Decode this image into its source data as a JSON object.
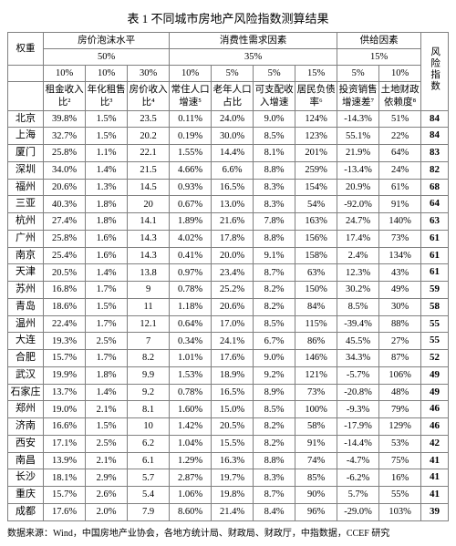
{
  "title": "表 1 不同城市房地产风险指数测算结果",
  "header": {
    "weight_label": "权重",
    "group1": "房价泡沫水平",
    "group1_pct": "50%",
    "group2": "消费性需求因素",
    "group2_pct": "35%",
    "group3": "供给因素",
    "group3_pct": "15%",
    "risk_label": "风险指数",
    "cols": [
      {
        "pct": "10%",
        "name": "租金收入比²"
      },
      {
        "pct": "10%",
        "name": "年化租售比³"
      },
      {
        "pct": "30%",
        "name": "房价收入比⁴"
      },
      {
        "pct": "10%",
        "name": "常住人口增速⁵"
      },
      {
        "pct": "5%",
        "name": "老年人口占比"
      },
      {
        "pct": "5%",
        "name": "可支配收入增速"
      },
      {
        "pct": "15%",
        "name": "居民负债率⁶"
      },
      {
        "pct": "5%",
        "name": "投资销售增速差⁷"
      },
      {
        "pct": "10%",
        "name": "土地财政依赖度⁸"
      }
    ]
  },
  "rows": [
    {
      "city": "北京",
      "v": [
        "39.8%",
        "1.5%",
        "23.5",
        "0.11%",
        "24.0%",
        "9.0%",
        "124%",
        "-14.3%",
        "51%"
      ],
      "risk": "84"
    },
    {
      "city": "上海",
      "v": [
        "32.7%",
        "1.5%",
        "20.2",
        "0.19%",
        "30.0%",
        "8.5%",
        "123%",
        "55.1%",
        "22%"
      ],
      "risk": "84"
    },
    {
      "city": "厦门",
      "v": [
        "25.8%",
        "1.1%",
        "22.1",
        "1.55%",
        "14.4%",
        "8.1%",
        "201%",
        "21.9%",
        "64%"
      ],
      "risk": "83"
    },
    {
      "city": "深圳",
      "v": [
        "34.0%",
        "1.4%",
        "21.5",
        "4.66%",
        "6.6%",
        "8.8%",
        "259%",
        "-13.4%",
        "24%"
      ],
      "risk": "82"
    },
    {
      "city": "福州",
      "v": [
        "20.6%",
        "1.3%",
        "14.5",
        "0.93%",
        "16.5%",
        "8.3%",
        "154%",
        "20.9%",
        "61%"
      ],
      "risk": "68"
    },
    {
      "city": "三亚",
      "v": [
        "40.3%",
        "1.8%",
        "20",
        "0.67%",
        "13.0%",
        "8.3%",
        "54%",
        "-92.0%",
        "91%"
      ],
      "risk": "64"
    },
    {
      "city": "杭州",
      "v": [
        "27.4%",
        "1.8%",
        "14.1",
        "1.89%",
        "21.6%",
        "7.8%",
        "163%",
        "24.7%",
        "140%"
      ],
      "risk": "63"
    },
    {
      "city": "广州",
      "v": [
        "25.8%",
        "1.6%",
        "14.3",
        "4.02%",
        "17.8%",
        "8.8%",
        "156%",
        "17.4%",
        "73%"
      ],
      "risk": "61"
    },
    {
      "city": "南京",
      "v": [
        "25.4%",
        "1.6%",
        "14.3",
        "0.41%",
        "20.0%",
        "9.1%",
        "158%",
        "2.4%",
        "134%"
      ],
      "risk": "61"
    },
    {
      "city": "天津",
      "v": [
        "20.5%",
        "1.4%",
        "13.8",
        "0.97%",
        "23.4%",
        "8.7%",
        "63%",
        "12.3%",
        "43%"
      ],
      "risk": "61"
    },
    {
      "city": "苏州",
      "v": [
        "16.8%",
        "1.7%",
        "9",
        "0.78%",
        "25.2%",
        "8.2%",
        "150%",
        "30.2%",
        "49%"
      ],
      "risk": "59"
    },
    {
      "city": "青岛",
      "v": [
        "18.6%",
        "1.5%",
        "11",
        "1.18%",
        "20.6%",
        "8.2%",
        "84%",
        "8.5%",
        "30%"
      ],
      "risk": "58"
    },
    {
      "city": "温州",
      "v": [
        "22.4%",
        "1.7%",
        "12.1",
        "0.64%",
        "17.0%",
        "8.5%",
        "115%",
        "-39.4%",
        "88%"
      ],
      "risk": "55"
    },
    {
      "city": "大连",
      "v": [
        "19.3%",
        "2.5%",
        "7",
        "0.34%",
        "24.1%",
        "6.7%",
        "86%",
        "45.5%",
        "27%"
      ],
      "risk": "55"
    },
    {
      "city": "合肥",
      "v": [
        "15.7%",
        "1.7%",
        "8.2",
        "1.01%",
        "17.6%",
        "9.0%",
        "146%",
        "34.3%",
        "87%"
      ],
      "risk": "52"
    },
    {
      "city": "武汉",
      "v": [
        "19.9%",
        "1.8%",
        "9.9",
        "1.53%",
        "18.9%",
        "9.2%",
        "121%",
        "-5.7%",
        "106%"
      ],
      "risk": "49"
    },
    {
      "city": "石家庄",
      "v": [
        "13.7%",
        "1.4%",
        "9.2",
        "0.78%",
        "16.5%",
        "8.9%",
        "73%",
        "-20.8%",
        "48%"
      ],
      "risk": "49"
    },
    {
      "city": "郑州",
      "v": [
        "19.0%",
        "2.1%",
        "8.1",
        "1.60%",
        "15.0%",
        "8.5%",
        "100%",
        "-9.3%",
        "79%"
      ],
      "risk": "46"
    },
    {
      "city": "济南",
      "v": [
        "16.6%",
        "1.5%",
        "10",
        "1.42%",
        "20.5%",
        "8.2%",
        "58%",
        "-17.9%",
        "129%"
      ],
      "risk": "46"
    },
    {
      "city": "西安",
      "v": [
        "17.1%",
        "2.5%",
        "6.2",
        "1.04%",
        "15.5%",
        "8.2%",
        "91%",
        "-14.4%",
        "53%"
      ],
      "risk": "42"
    },
    {
      "city": "南昌",
      "v": [
        "13.9%",
        "2.1%",
        "6.1",
        "1.29%",
        "16.3%",
        "8.8%",
        "74%",
        "-4.7%",
        "75%"
      ],
      "risk": "41"
    },
    {
      "city": "长沙",
      "v": [
        "18.1%",
        "2.9%",
        "5.7",
        "2.87%",
        "19.7%",
        "8.3%",
        "85%",
        "-6.2%",
        "16%"
      ],
      "risk": "41"
    },
    {
      "city": "重庆",
      "v": [
        "15.7%",
        "2.6%",
        "5.4",
        "1.06%",
        "19.8%",
        "8.7%",
        "90%",
        "5.7%",
        "55%"
      ],
      "risk": "41"
    },
    {
      "city": "成都",
      "v": [
        "17.6%",
        "2.0%",
        "7.9",
        "8.60%",
        "21.4%",
        "8.4%",
        "96%",
        "-29.0%",
        "103%"
      ],
      "risk": "39"
    }
  ],
  "source": "数据来源：Wind，中国房地产业协会，各地方统计局、财政局、财政厅，中指数据，CCEF 研究"
}
